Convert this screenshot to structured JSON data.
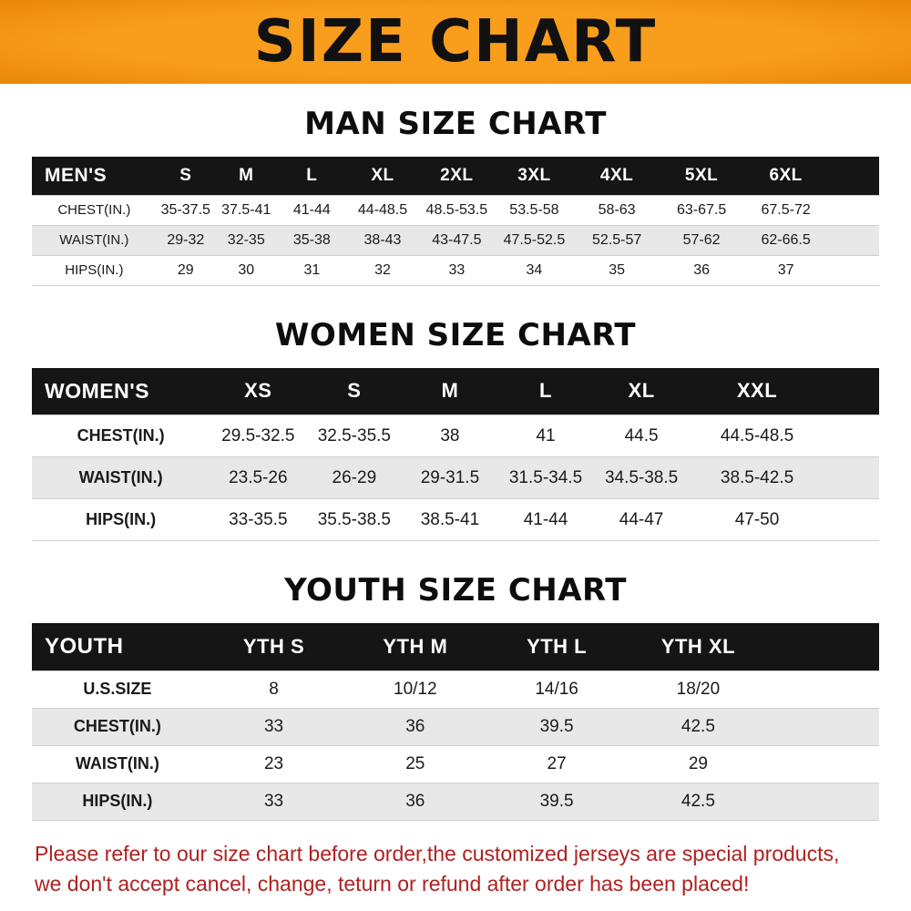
{
  "banner": {
    "title": "SIZE CHART",
    "bg_color": "#f5930f",
    "text_color": "#111111"
  },
  "sections": {
    "men": {
      "heading": "MAN SIZE CHART"
    },
    "women": {
      "heading": "WOMEN SIZE CHART"
    },
    "youth": {
      "heading": "YOUTH SIZE CHART"
    }
  },
  "tables": {
    "men": {
      "header": [
        "MEN'S",
        "S",
        "M",
        "L",
        "XL",
        "2XL",
        "3XL",
        "4XL",
        "5XL",
        "6XL"
      ],
      "rows": [
        [
          "CHEST(IN.)",
          "35-37.5",
          "37.5-41",
          "41-44",
          "44-48.5",
          "48.5-53.5",
          "53.5-58",
          "58-63",
          "63-67.5",
          "67.5-72"
        ],
        [
          "WAIST(IN.)",
          "29-32",
          "32-35",
          "35-38",
          "38-43",
          "43-47.5",
          "47.5-52.5",
          "52.5-57",
          "57-62",
          "62-66.5"
        ],
        [
          "HIPS(IN.)",
          "29",
          "30",
          "31",
          "32",
          "33",
          "34",
          "35",
          "36",
          "37"
        ]
      ]
    },
    "women": {
      "header": [
        "WOMEN'S",
        "XS",
        "S",
        "M",
        "L",
        "XL",
        "XXL"
      ],
      "rows": [
        [
          "CHEST(IN.)",
          "29.5-32.5",
          "32.5-35.5",
          "38",
          "41",
          "44.5",
          "44.5-48.5"
        ],
        [
          "WAIST(IN.)",
          "23.5-26",
          "26-29",
          "29-31.5",
          "31.5-34.5",
          "34.5-38.5",
          "38.5-42.5"
        ],
        [
          "HIPS(IN.)",
          "33-35.5",
          "35.5-38.5",
          "38.5-41",
          "41-44",
          "44-47",
          "47-50"
        ]
      ]
    },
    "youth": {
      "header": [
        "YOUTH",
        "YTH S",
        "YTH M",
        "YTH L",
        "YTH XL"
      ],
      "rows": [
        [
          "U.S.SIZE",
          "8",
          "10/12",
          "14/16",
          "18/20"
        ],
        [
          "CHEST(IN.)",
          "33",
          "36",
          "39.5",
          "42.5"
        ],
        [
          "WAIST(IN.)",
          "23",
          "25",
          "27",
          "29"
        ],
        [
          "HIPS(IN.)",
          "33",
          "36",
          "39.5",
          "42.5"
        ]
      ]
    }
  },
  "footer": {
    "line1": "Please refer to our size chart before order,the customized jerseys are special products,",
    "line2": "we don't accept cancel, change, teturn or refund after order has been placed!",
    "text_color": "#b02020"
  },
  "colors": {
    "banner_orange": "#f5930f",
    "table_header_bg": "#151515",
    "table_header_text": "#ffffff",
    "row_stripe": "#e8e8e8",
    "row_border": "#cfcfcf",
    "footer_red": "#b02020"
  }
}
